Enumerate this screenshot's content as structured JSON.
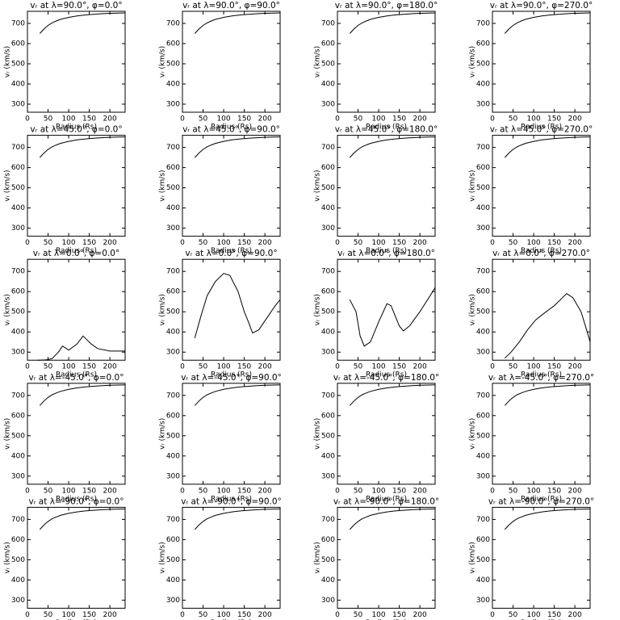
{
  "chart_data": [
    {
      "type": "line",
      "title": "vᵣ at λ=90.0°, φ=0.0°",
      "x_label": "Radius (Rs)",
      "y_label": "vᵣ (km/s)",
      "x": [
        30,
        40,
        50,
        60,
        70,
        80,
        100,
        120,
        140,
        160,
        180,
        200,
        220,
        237
      ],
      "values": [
        650,
        672,
        690,
        703,
        712,
        720,
        730,
        737,
        742,
        745,
        748,
        750,
        751,
        752
      ],
      "xlim": [
        0,
        237
      ],
      "ylim": [
        260,
        760
      ],
      "xticks": [
        0,
        50,
        100,
        150,
        200
      ],
      "yticks": [
        300,
        400,
        500,
        600,
        700
      ],
      "color": "#000000"
    },
    {
      "type": "line",
      "title": "vᵣ at λ=90.0°, φ=90.0°",
      "x_label": "Radius (Rs)",
      "y_label": "vᵣ (km/s)",
      "x": [
        30,
        40,
        50,
        60,
        70,
        80,
        100,
        120,
        140,
        160,
        180,
        200,
        220,
        237
      ],
      "values": [
        650,
        672,
        690,
        703,
        712,
        720,
        730,
        737,
        742,
        745,
        748,
        750,
        751,
        752
      ],
      "xlim": [
        0,
        237
      ],
      "ylim": [
        260,
        760
      ],
      "xticks": [
        0,
        50,
        100,
        150,
        200
      ],
      "yticks": [
        300,
        400,
        500,
        600,
        700
      ],
      "color": "#000000"
    },
    {
      "type": "line",
      "title": "vᵣ at λ=90.0°, φ=180.0°",
      "x_label": "Radius (Rs)",
      "y_label": "vᵣ (km/s)",
      "x": [
        30,
        40,
        50,
        60,
        70,
        80,
        100,
        120,
        140,
        160,
        180,
        200,
        220,
        237
      ],
      "values": [
        650,
        672,
        690,
        703,
        712,
        720,
        730,
        737,
        742,
        745,
        748,
        750,
        751,
        752
      ],
      "xlim": [
        0,
        237
      ],
      "ylim": [
        260,
        760
      ],
      "xticks": [
        0,
        50,
        100,
        150,
        200
      ],
      "yticks": [
        300,
        400,
        500,
        600,
        700
      ],
      "color": "#000000"
    },
    {
      "type": "line",
      "title": "vᵣ at λ=90.0°, φ=270.0°",
      "x_label": "Radius (Rs)",
      "y_label": "vᵣ (km/s)",
      "x": [
        30,
        40,
        50,
        60,
        70,
        80,
        100,
        120,
        140,
        160,
        180,
        200,
        220,
        237
      ],
      "values": [
        650,
        672,
        690,
        703,
        712,
        720,
        730,
        737,
        742,
        745,
        748,
        750,
        751,
        752
      ],
      "xlim": [
        0,
        237
      ],
      "ylim": [
        260,
        760
      ],
      "xticks": [
        0,
        50,
        100,
        150,
        200
      ],
      "yticks": [
        300,
        400,
        500,
        600,
        700
      ],
      "color": "#000000"
    },
    {
      "type": "line",
      "title": "vᵣ at λ=45.0°, φ=0.0°",
      "x_label": "Radius (Rs)",
      "y_label": "vᵣ (km/s)",
      "x": [
        30,
        40,
        50,
        60,
        70,
        80,
        100,
        120,
        140,
        160,
        180,
        200,
        220,
        237
      ],
      "values": [
        650,
        672,
        690,
        703,
        712,
        720,
        730,
        737,
        742,
        745,
        748,
        750,
        751,
        752
      ],
      "xlim": [
        0,
        237
      ],
      "ylim": [
        260,
        760
      ],
      "xticks": [
        0,
        50,
        100,
        150,
        200
      ],
      "yticks": [
        300,
        400,
        500,
        600,
        700
      ],
      "color": "#000000"
    },
    {
      "type": "line",
      "title": "vᵣ at λ=45.0°, φ=90.0°",
      "x_label": "Radius (Rs)",
      "y_label": "vᵣ (km/s)",
      "x": [
        30,
        40,
        50,
        60,
        70,
        80,
        100,
        120,
        140,
        160,
        180,
        200,
        220,
        237
      ],
      "values": [
        650,
        672,
        690,
        703,
        712,
        720,
        730,
        737,
        742,
        745,
        748,
        750,
        751,
        752
      ],
      "xlim": [
        0,
        237
      ],
      "ylim": [
        260,
        760
      ],
      "xticks": [
        0,
        50,
        100,
        150,
        200
      ],
      "yticks": [
        300,
        400,
        500,
        600,
        700
      ],
      "color": "#000000"
    },
    {
      "type": "line",
      "title": "vᵣ at λ=45.0°, φ=180.0°",
      "x_label": "Radius (Rs)",
      "y_label": "vᵣ (km/s)",
      "x": [
        30,
        40,
        50,
        60,
        70,
        80,
        100,
        120,
        140,
        160,
        180,
        200,
        220,
        237
      ],
      "values": [
        650,
        672,
        690,
        703,
        712,
        720,
        730,
        737,
        742,
        745,
        748,
        750,
        751,
        752
      ],
      "xlim": [
        0,
        237
      ],
      "ylim": [
        260,
        760
      ],
      "xticks": [
        0,
        50,
        100,
        150,
        200
      ],
      "yticks": [
        300,
        400,
        500,
        600,
        700
      ],
      "color": "#000000"
    },
    {
      "type": "line",
      "title": "vᵣ at λ=45.0°, φ=270.0°",
      "x_label": "Radius (Rs)",
      "y_label": "vᵣ (km/s)",
      "x": [
        30,
        40,
        50,
        60,
        70,
        80,
        100,
        120,
        140,
        160,
        180,
        200,
        220,
        237
      ],
      "values": [
        650,
        672,
        690,
        703,
        712,
        720,
        730,
        737,
        742,
        745,
        748,
        750,
        751,
        752
      ],
      "xlim": [
        0,
        237
      ],
      "ylim": [
        260,
        760
      ],
      "xticks": [
        0,
        50,
        100,
        150,
        200
      ],
      "yticks": [
        300,
        400,
        500,
        600,
        700
      ],
      "color": "#000000"
    },
    {
      "type": "line",
      "title": "vᵣ at λ=0.0°, φ=0.0°",
      "x_label": "Radius (Rs)",
      "y_label": "vᵣ (km/s)",
      "x": [
        25,
        45,
        60,
        75,
        85,
        100,
        120,
        135,
        155,
        170,
        200,
        237
      ],
      "values": [
        260,
        262,
        268,
        300,
        330,
        310,
        340,
        380,
        340,
        318,
        305,
        305
      ],
      "xlim": [
        0,
        237
      ],
      "ylim": [
        260,
        760
      ],
      "xticks": [
        0,
        50,
        100,
        150,
        200
      ],
      "yticks": [
        300,
        400,
        500,
        600,
        700
      ],
      "color": "#000000"
    },
    {
      "type": "line",
      "title": "vᵣ at λ=0.0°, φ=90.0°",
      "x_label": "Radius (Rs)",
      "y_label": "vᵣ (km/s)",
      "x": [
        30,
        45,
        60,
        80,
        100,
        115,
        135,
        150,
        160,
        170,
        185,
        205,
        225,
        237
      ],
      "values": [
        370,
        480,
        580,
        650,
        690,
        680,
        600,
        500,
        450,
        395,
        410,
        470,
        530,
        560
      ],
      "xlim": [
        0,
        237
      ],
      "ylim": [
        260,
        760
      ],
      "xticks": [
        0,
        50,
        100,
        150,
        200
      ],
      "yticks": [
        300,
        400,
        500,
        600,
        700
      ],
      "color": "#000000"
    },
    {
      "type": "line",
      "title": "vᵣ at λ=0.0°, φ=180.0°",
      "x_label": "Radius (Rs)",
      "y_label": "vᵣ (km/s)",
      "x": [
        30,
        45,
        55,
        65,
        80,
        100,
        120,
        130,
        150,
        160,
        175,
        200,
        225,
        237
      ],
      "values": [
        560,
        500,
        380,
        330,
        350,
        450,
        540,
        530,
        430,
        405,
        430,
        500,
        580,
        620
      ],
      "xlim": [
        0,
        237
      ],
      "ylim": [
        260,
        760
      ],
      "xticks": [
        0,
        50,
        100,
        150,
        200
      ],
      "yticks": [
        300,
        400,
        500,
        600,
        700
      ],
      "color": "#000000"
    },
    {
      "type": "line",
      "title": "vᵣ at λ=0.0°, φ=270.0°",
      "x_label": "Radius (Rs)",
      "y_label": "vᵣ (km/s)",
      "x": [
        30,
        45,
        65,
        85,
        105,
        130,
        150,
        170,
        180,
        195,
        215,
        230,
        237
      ],
      "values": [
        270,
        300,
        350,
        410,
        460,
        500,
        530,
        570,
        590,
        570,
        500,
        400,
        350
      ],
      "xlim": [
        0,
        237
      ],
      "ylim": [
        260,
        760
      ],
      "xticks": [
        0,
        50,
        100,
        150,
        200
      ],
      "yticks": [
        300,
        400,
        500,
        600,
        700
      ],
      "color": "#000000"
    },
    {
      "type": "line",
      "title": "vᵣ at λ=-45.0°, φ=0.0°",
      "x_label": "Radius (Rs)",
      "y_label": "vᵣ (km/s)",
      "x": [
        30,
        40,
        50,
        60,
        70,
        80,
        100,
        120,
        140,
        160,
        180,
        200,
        220,
        237
      ],
      "values": [
        650,
        672,
        690,
        703,
        712,
        720,
        730,
        737,
        742,
        745,
        748,
        750,
        751,
        752
      ],
      "xlim": [
        0,
        237
      ],
      "ylim": [
        260,
        760
      ],
      "xticks": [
        0,
        50,
        100,
        150,
        200
      ],
      "yticks": [
        300,
        400,
        500,
        600,
        700
      ],
      "color": "#000000"
    },
    {
      "type": "line",
      "title": "vᵣ at λ=-45.0°, φ=90.0°",
      "x_label": "Radius (Rs)",
      "y_label": "vᵣ (km/s)",
      "x": [
        30,
        40,
        50,
        60,
        70,
        80,
        100,
        120,
        140,
        160,
        180,
        200,
        220,
        237
      ],
      "values": [
        650,
        672,
        690,
        703,
        712,
        720,
        730,
        737,
        742,
        745,
        748,
        750,
        751,
        752
      ],
      "xlim": [
        0,
        237
      ],
      "ylim": [
        260,
        760
      ],
      "xticks": [
        0,
        50,
        100,
        150,
        200
      ],
      "yticks": [
        300,
        400,
        500,
        600,
        700
      ],
      "color": "#000000"
    },
    {
      "type": "line",
      "title": "vᵣ at λ=-45.0°, φ=180.0°",
      "x_label": "Radius (Rs)",
      "y_label": "vᵣ (km/s)",
      "x": [
        30,
        40,
        50,
        60,
        70,
        80,
        100,
        120,
        140,
        160,
        180,
        200,
        220,
        237
      ],
      "values": [
        650,
        672,
        690,
        703,
        712,
        720,
        730,
        737,
        742,
        745,
        748,
        750,
        751,
        752
      ],
      "xlim": [
        0,
        237
      ],
      "ylim": [
        260,
        760
      ],
      "xticks": [
        0,
        50,
        100,
        150,
        200
      ],
      "yticks": [
        300,
        400,
        500,
        600,
        700
      ],
      "color": "#000000"
    },
    {
      "type": "line",
      "title": "vᵣ at λ=-45.0°, φ=270.0°",
      "x_label": "Radius (Rs)",
      "y_label": "vᵣ (km/s)",
      "x": [
        30,
        40,
        50,
        60,
        70,
        80,
        100,
        120,
        140,
        160,
        180,
        200,
        220,
        237
      ],
      "values": [
        650,
        672,
        690,
        703,
        712,
        720,
        730,
        737,
        742,
        745,
        748,
        750,
        751,
        752
      ],
      "xlim": [
        0,
        237
      ],
      "ylim": [
        260,
        760
      ],
      "xticks": [
        0,
        50,
        100,
        150,
        200
      ],
      "yticks": [
        300,
        400,
        500,
        600,
        700
      ],
      "color": "#000000"
    },
    {
      "type": "line",
      "title": "vᵣ at λ=-90.0°, φ=0.0°",
      "x_label": "Radius (Rs)",
      "y_label": "vᵣ (km/s)",
      "x": [
        30,
        40,
        50,
        60,
        70,
        80,
        100,
        120,
        140,
        160,
        180,
        200,
        220,
        237
      ],
      "values": [
        650,
        672,
        690,
        703,
        712,
        720,
        730,
        737,
        742,
        745,
        748,
        750,
        751,
        752
      ],
      "xlim": [
        0,
        237
      ],
      "ylim": [
        260,
        760
      ],
      "xticks": [
        0,
        50,
        100,
        150,
        200
      ],
      "yticks": [
        300,
        400,
        500,
        600,
        700
      ],
      "color": "#000000"
    },
    {
      "type": "line",
      "title": "vᵣ at λ=-90.0°, φ=90.0°",
      "x_label": "Radius (Rs)",
      "y_label": "vᵣ (km/s)",
      "x": [
        30,
        40,
        50,
        60,
        70,
        80,
        100,
        120,
        140,
        160,
        180,
        200,
        220,
        237
      ],
      "values": [
        650,
        672,
        690,
        703,
        712,
        720,
        730,
        737,
        742,
        745,
        748,
        750,
        751,
        752
      ],
      "xlim": [
        0,
        237
      ],
      "ylim": [
        260,
        760
      ],
      "xticks": [
        0,
        50,
        100,
        150,
        200
      ],
      "yticks": [
        300,
        400,
        500,
        600,
        700
      ],
      "color": "#000000"
    },
    {
      "type": "line",
      "title": "vᵣ at λ=-90.0°, φ=180.0°",
      "x_label": "Radius (Rs)",
      "y_label": "vᵣ (km/s)",
      "x": [
        30,
        40,
        50,
        60,
        70,
        80,
        100,
        120,
        140,
        160,
        180,
        200,
        220,
        237
      ],
      "values": [
        650,
        672,
        690,
        703,
        712,
        720,
        730,
        737,
        742,
        745,
        748,
        750,
        751,
        752
      ],
      "xlim": [
        0,
        237
      ],
      "ylim": [
        260,
        760
      ],
      "xticks": [
        0,
        50,
        100,
        150,
        200
      ],
      "yticks": [
        300,
        400,
        500,
        600,
        700
      ],
      "color": "#000000"
    },
    {
      "type": "line",
      "title": "vᵣ at λ=-90.0°, φ=270.0°",
      "x_label": "Radius (Rs)",
      "y_label": "vᵣ (km/s)",
      "x": [
        30,
        40,
        50,
        60,
        70,
        80,
        100,
        120,
        140,
        160,
        180,
        200,
        220,
        237
      ],
      "values": [
        650,
        672,
        690,
        703,
        712,
        720,
        730,
        737,
        742,
        745,
        748,
        750,
        751,
        752
      ],
      "xlim": [
        0,
        237
      ],
      "ylim": [
        260,
        760
      ],
      "xticks": [
        0,
        50,
        100,
        150,
        200
      ],
      "yticks": [
        300,
        400,
        500,
        600,
        700
      ],
      "color": "#000000"
    }
  ]
}
